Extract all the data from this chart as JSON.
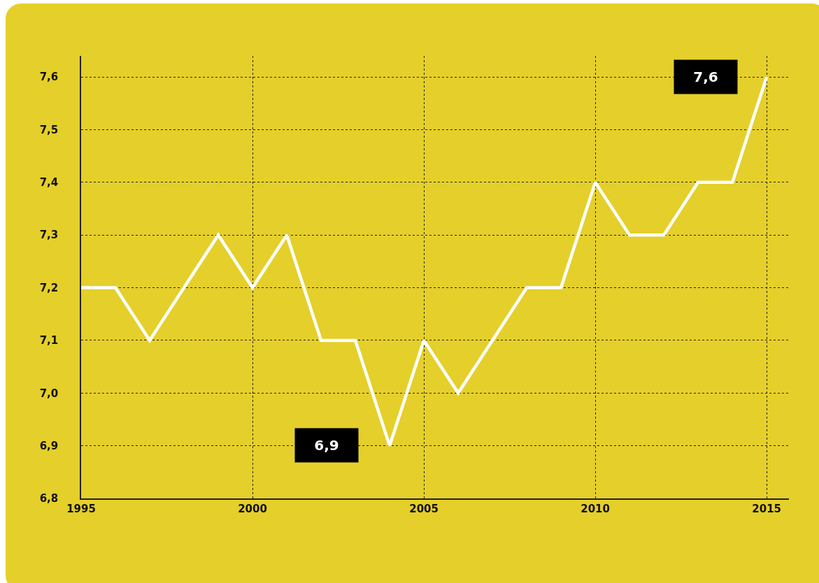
{
  "chart_data": {
    "type": "line",
    "x": [
      1995,
      1996,
      1997,
      1998,
      1999,
      2000,
      2001,
      2002,
      2003,
      2004,
      2005,
      2006,
      2007,
      2008,
      2009,
      2010,
      2011,
      2012,
      2013,
      2014,
      2015
    ],
    "series": [
      {
        "color": "#ffffff",
        "values": [
          7.2,
          7.2,
          7.1,
          7.2,
          7.3,
          7.2,
          7.3,
          7.1,
          7.1,
          6.9,
          7.1,
          7.0,
          7.1,
          7.2,
          7.2,
          7.4,
          7.3,
          7.3,
          7.4,
          7.4,
          7.6
        ]
      }
    ],
    "xlim": [
      1995,
      2015.65
    ],
    "xticks": [
      1995,
      2000,
      2005,
      2010,
      2015
    ],
    "ylim": [
      6.8,
      7.64
    ],
    "yticks": [
      {
        "value": 6.8,
        "label": "6,8"
      },
      {
        "value": 6.9,
        "label": "6,9"
      },
      {
        "value": 7.0,
        "label": "7,0"
      },
      {
        "value": 7.1,
        "label": "7,1"
      },
      {
        "value": 7.2,
        "label": "7,2"
      },
      {
        "value": 7.3,
        "label": "7,3"
      },
      {
        "value": 7.4,
        "label": "7,4"
      },
      {
        "value": 7.5,
        "label": "7,5"
      },
      {
        "value": 7.6,
        "label": "7,6"
      }
    ],
    "annotations": [
      "7,6",
      "6,9"
    ],
    "grid": true,
    "marker": "none",
    "line_style": "solid"
  }
}
